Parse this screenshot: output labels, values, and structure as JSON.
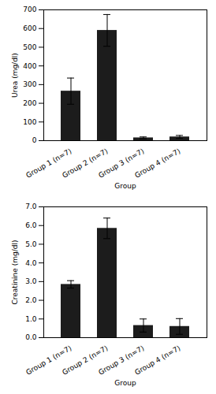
{
  "chart_data": [
    {
      "type": "bar",
      "categories": [
        "Group 1 (n=7)",
        "Group 2 (n=7)",
        "Group 3 (n=7)",
        "Group 4 (n=7)"
      ],
      "values": [
        265,
        590,
        15,
        20
      ],
      "errors": [
        70,
        85,
        5,
        8
      ],
      "ylabel": "Urea (mg/dl)",
      "xlabel": "Group",
      "ylim": [
        0,
        700
      ],
      "yticks": [
        0,
        100,
        200,
        300,
        400,
        500,
        600,
        700
      ],
      "color": "#1c1c1c",
      "grid": false
    },
    {
      "type": "bar",
      "categories": [
        "Group 1 (n=7)",
        "Group 2 (n=7)",
        "Group 3 (n=7)",
        "Group 4 (n=7)"
      ],
      "values": [
        2.85,
        5.85,
        0.65,
        0.6
      ],
      "errors": [
        0.2,
        0.55,
        0.35,
        0.42
      ],
      "ylabel": "Creatinine (mg/dl)",
      "xlabel": "Group",
      "ylim": [
        0,
        7
      ],
      "yticks": [
        0,
        1,
        2,
        3,
        4,
        5,
        6,
        7
      ],
      "color": "#1c1c1c",
      "grid": false
    }
  ]
}
